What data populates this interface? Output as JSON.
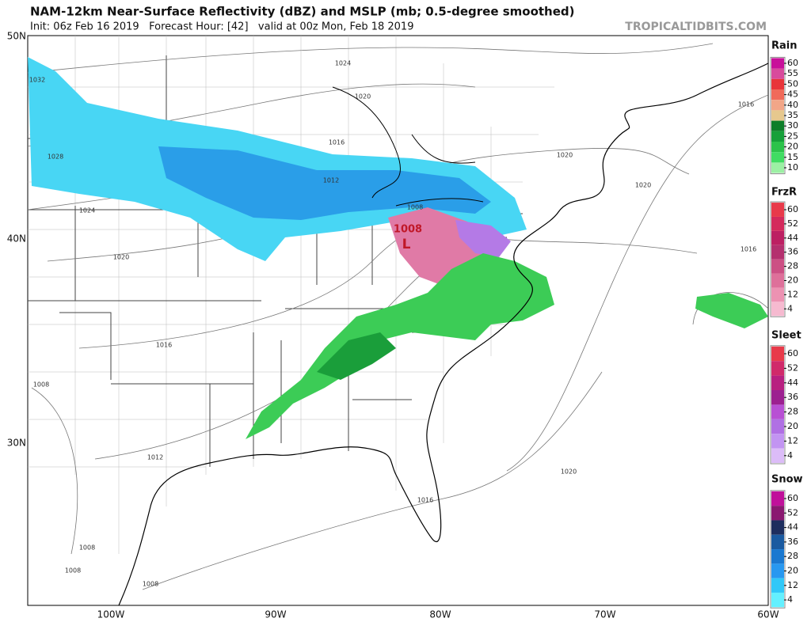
{
  "header": {
    "title": "NAM-12km Near-Surface Reflectivity (dBZ) and MSLP (mb; 0.5-degree smoothed)",
    "subtitle": "Init: 06z Feb 16 2019   Forecast Hour: [42]   valid at 00z Mon, Feb 18 2019",
    "watermark": "TROPICALTIDBITS.COM"
  },
  "map": {
    "lat_labels": [
      "50N",
      "40N",
      "30N"
    ],
    "lon_labels": [
      "100W",
      "90W",
      "80W",
      "70W",
      "60W"
    ],
    "isobars": [
      "1032",
      "1028",
      "1024",
      "1020",
      "1016",
      "1012",
      "1008",
      "1008",
      "1008",
      "1008",
      "1024",
      "1020",
      "1016",
      "1012",
      "1008",
      "1020",
      "1020",
      "1016",
      "1016",
      "1020",
      "1016"
    ],
    "low": {
      "pressure": "1008",
      "symbol": "L"
    }
  },
  "legends": [
    {
      "title": "Rain",
      "levels": [
        {
          "label": "60",
          "color": "#c8109a"
        },
        {
          "label": "55",
          "color": "#d84a9c"
        },
        {
          "label": "50",
          "color": "#e8343a"
        },
        {
          "label": "45",
          "color": "#f06a5a"
        },
        {
          "label": "40",
          "color": "#f2a688"
        },
        {
          "label": "35",
          "color": "#e6c88e"
        },
        {
          "label": "30",
          "color": "#0e7e2a"
        },
        {
          "label": "25",
          "color": "#17a03a"
        },
        {
          "label": "20",
          "color": "#2cc24a"
        },
        {
          "label": "15",
          "color": "#40dc62"
        },
        {
          "label": "10",
          "color": "#9cf0a4"
        }
      ]
    },
    {
      "title": "FrzR",
      "levels": [
        {
          "label": "60",
          "color": "#e83a4a"
        },
        {
          "label": "52",
          "color": "#d42a5c"
        },
        {
          "label": "44",
          "color": "#bc2062"
        },
        {
          "label": "36",
          "color": "#b4306e"
        },
        {
          "label": "28",
          "color": "#cc5084"
        },
        {
          "label": "20",
          "color": "#de709a"
        },
        {
          "label": "12",
          "color": "#ec92b2"
        },
        {
          "label": "4",
          "color": "#f6bad0"
        }
      ]
    },
    {
      "title": "Sleet",
      "levels": [
        {
          "label": "60",
          "color": "#e83a4a"
        },
        {
          "label": "52",
          "color": "#d02a6a"
        },
        {
          "label": "44",
          "color": "#b82080"
        },
        {
          "label": "36",
          "color": "#9c2090"
        },
        {
          "label": "28",
          "color": "#b850d4"
        },
        {
          "label": "20",
          "color": "#b070e4"
        },
        {
          "label": "12",
          "color": "#c294f2"
        },
        {
          "label": "4",
          "color": "#dcbcf8"
        }
      ]
    },
    {
      "title": "Snow",
      "levels": [
        {
          "label": "60",
          "color": "#c0109a"
        },
        {
          "label": "52",
          "color": "#8a1870"
        },
        {
          "label": "44",
          "color": "#1e2e5e"
        },
        {
          "label": "36",
          "color": "#1a5aa0"
        },
        {
          "label": "28",
          "color": "#1a78d0"
        },
        {
          "label": "20",
          "color": "#2898f0"
        },
        {
          "label": "12",
          "color": "#30c8f8"
        },
        {
          "label": "4",
          "color": "#64f0ff"
        }
      ]
    }
  ]
}
